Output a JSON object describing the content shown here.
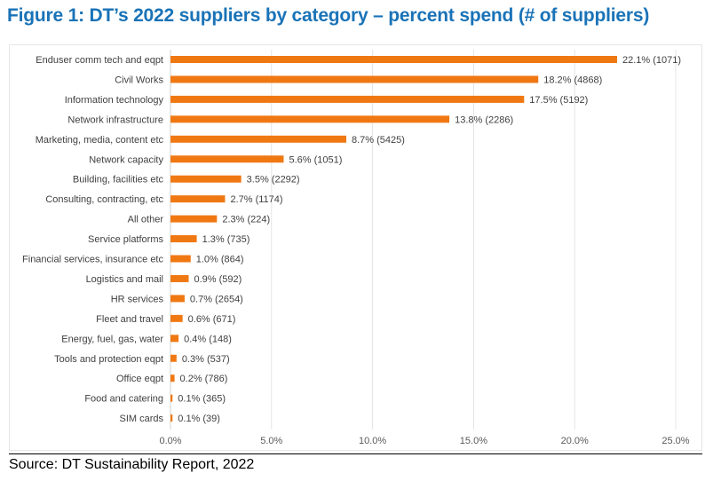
{
  "title": "Figure 1: DT’s 2022 suppliers by category – percent spend (# of suppliers)",
  "source": "Source: DT Sustainability Report, 2022",
  "chart_data": {
    "type": "bar",
    "orientation": "horizontal",
    "title": "Figure 1: DT’s 2022 suppliers by category – percent spend (# of suppliers)",
    "xlabel": "",
    "ylabel": "",
    "xlim": [
      0,
      25
    ],
    "x_ticks": [
      "0.0%",
      "5.0%",
      "10.0%",
      "15.0%",
      "20.0%",
      "25.0%"
    ],
    "x_tick_values": [
      0,
      5,
      10,
      15,
      20,
      25
    ],
    "grid": "vertical",
    "legend": "none",
    "bar_color": "#f07813",
    "categories": [
      "Enduser comm tech and eqpt",
      "Civil Works",
      "Information technology",
      "Network infrastructure",
      "Marketing, media, content etc",
      "Network capacity",
      "Building, facilities etc",
      "Consulting, contracting, etc",
      "All other",
      "Service platforms",
      "Financial services, insurance etc",
      "Logistics and mail",
      "HR services",
      "Fleet and travel",
      "Energy, fuel, gas, water",
      "Tools and protection eqpt",
      "Office eqpt",
      "Food and catering",
      "SIM cards"
    ],
    "values": [
      22.1,
      18.2,
      17.5,
      13.8,
      8.7,
      5.6,
      3.5,
      2.7,
      2.3,
      1.3,
      1.0,
      0.9,
      0.7,
      0.6,
      0.4,
      0.3,
      0.2,
      0.1,
      0.1
    ],
    "supplier_counts": [
      1071,
      4868,
      5192,
      2286,
      5425,
      1051,
      2292,
      1174,
      224,
      735,
      864,
      592,
      2654,
      671,
      148,
      537,
      786,
      365,
      39
    ],
    "data_labels": [
      "22.1% (1071)",
      "18.2% (4868)",
      "17.5% (5192)",
      "13.8% (2286)",
      "8.7% (5425)",
      "5.6% (1051)",
      "3.5% (2292)",
      "2.7% (1174)",
      "2.3% (224)",
      "1.3% (735)",
      "1.0% (864)",
      "0.9% (592)",
      "0.7% (2654)",
      "0.6% (671)",
      "0.4% (148)",
      "0.3% (537)",
      "0.2% (786)",
      "0.1% (365)",
      "0.1% (39)"
    ]
  }
}
